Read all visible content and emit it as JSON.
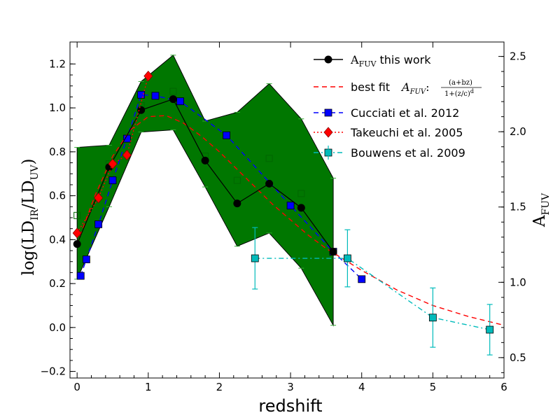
{
  "chart_data": {
    "type": "line",
    "xlabel": "redshift",
    "ylabel": "log(LD_IR/LD_UV)",
    "ylabel_parts": {
      "prefix": "log(LD",
      "sub1": "IR",
      "mid": "/LD",
      "sub2": "UV",
      "suffix": ")"
    },
    "y2label": "A_FUV",
    "y2label_parts": {
      "main": "A",
      "sub": "FUV"
    },
    "xlim": [
      -0.1,
      6
    ],
    "ylim": [
      -0.23,
      1.3
    ],
    "xticks": [
      "0",
      "1",
      "2",
      "3",
      "4",
      "5",
      "6"
    ],
    "yticks": [
      "−0.2",
      "0.0",
      "0.2",
      "0.4",
      "0.6",
      "0.8",
      "1.0",
      "1.2"
    ],
    "y2ticks": [
      "0.5",
      "1.0",
      "1.5",
      "2.0",
      "2.5"
    ],
    "grid": false,
    "legend_location": "top-right",
    "band": {
      "name": "uncertainty range",
      "color": "#007700",
      "x": [
        0.0,
        0.45,
        0.9,
        1.35,
        1.8,
        2.25,
        2.7,
        3.15,
        3.6
      ],
      "upper": [
        0.82,
        0.83,
        1.12,
        1.24,
        0.94,
        0.98,
        1.11,
        0.95,
        0.68
      ],
      "lower": [
        0.22,
        0.55,
        0.89,
        0.9,
        0.64,
        0.37,
        0.43,
        0.27,
        0.01
      ]
    },
    "series": [
      {
        "name": "A_FUV this work",
        "legend_main": "A",
        "legend_sub": "FUV",
        "legend_rest": " this work",
        "color": "#000000",
        "marker": "circle",
        "line": "solid",
        "x": [
          0.0,
          0.45,
          0.9,
          1.35,
          1.8,
          2.25,
          2.7,
          3.15,
          3.6
        ],
        "y": [
          0.38,
          0.73,
          0.99,
          1.04,
          0.76,
          0.565,
          0.655,
          0.545,
          0.345
        ]
      },
      {
        "name": "best fit",
        "legend_text": "best fit",
        "legend_formula": "A_FUV:(a+bz)/(1+(z/c)^d)",
        "formula_main": "A",
        "formula_sub": "FUV",
        "formula_colon": ":",
        "formula_num": "(a+bz)",
        "formula_den": "1+(z/c)",
        "formula_exp": "d",
        "color": "#ff0000",
        "marker": "none",
        "line": "dashed",
        "x": [
          0.0,
          0.25,
          0.5,
          0.75,
          1.0,
          1.25,
          1.5,
          1.75,
          2.0,
          2.25,
          2.5,
          2.75,
          3.0,
          3.25,
          3.5,
          3.75,
          4.0,
          4.5,
          5.0,
          5.5,
          6.0
        ],
        "y": [
          0.38,
          0.6,
          0.78,
          0.9,
          0.96,
          0.965,
          0.93,
          0.87,
          0.8,
          0.72,
          0.64,
          0.56,
          0.49,
          0.42,
          0.36,
          0.31,
          0.26,
          0.17,
          0.1,
          0.05,
          0.01
        ]
      },
      {
        "name": "Cucciati et al. 2012",
        "color": "#0000ff",
        "marker": "square",
        "line": "dashed",
        "x": [
          0.05,
          0.13,
          0.3,
          0.5,
          0.7,
          0.9,
          1.1,
          1.45,
          2.1,
          3.0,
          3.6,
          4.0
        ],
        "y": [
          0.235,
          0.31,
          0.47,
          0.67,
          0.86,
          1.06,
          1.055,
          1.03,
          0.875,
          0.555,
          0.345,
          0.22
        ]
      },
      {
        "name": "Takeuchi et al. 2005",
        "color": "#ff0000",
        "marker": "diamond",
        "line": "dotted",
        "x": [
          0.0,
          0.3,
          0.5,
          0.7,
          1.0
        ],
        "y": [
          0.43,
          0.59,
          0.745,
          0.785,
          1.145
        ]
      },
      {
        "name": "Bouwens et al. 2009",
        "color": "#00bbbb",
        "marker": "square",
        "line": "dashdot",
        "x": [
          2.5,
          3.8,
          5.0,
          5.8
        ],
        "y": [
          0.315,
          0.315,
          0.045,
          -0.01
        ],
        "yerr": [
          0.14,
          0.13,
          0.135,
          0.115
        ]
      },
      {
        "name": "open squares",
        "color": "#006600",
        "marker": "open-square",
        "line": "none",
        "x": [
          0.0,
          0.45,
          0.9,
          1.35,
          1.8,
          2.25,
          2.7,
          3.15
        ],
        "y": [
          0.51,
          0.745,
          1.01,
          1.075,
          0.78,
          0.67,
          0.77,
          0.61
        ]
      }
    ]
  }
}
